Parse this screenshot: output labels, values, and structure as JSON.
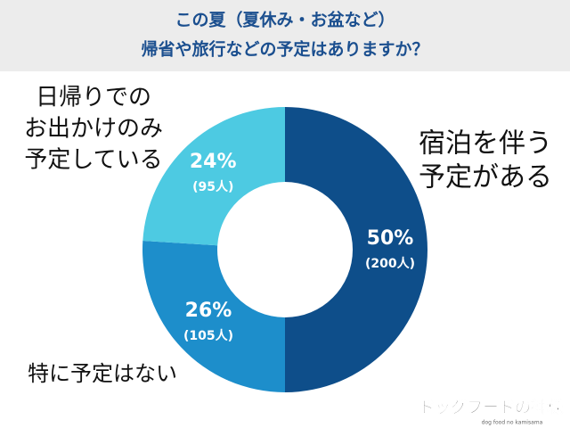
{
  "chart_data": {
    "type": "donut",
    "title": [
      "この夏（夏休み・お盆など）",
      "帰省や旅行などの予定はありますか？"
    ],
    "categories": [
      [
        "宿泊を伴う",
        "予定がある"
      ],
      [
        "特に予定はない"
      ],
      [
        "日帰りでの",
        "お出かけのみ",
        "予定している"
      ]
    ],
    "values": [
      50,
      26,
      24
    ],
    "value_labels": [
      "50%",
      "26%",
      "24%"
    ],
    "counts": [
      200,
      105,
      95
    ],
    "count_labels": [
      "(200人)",
      "(105人)",
      "(95人)"
    ],
    "colors": [
      "#0e4e8a",
      "#1d8ecb",
      "#4dcae2"
    ],
    "watermark": [
      "ドッグフードの神様",
      "dog food no kamisama"
    ]
  }
}
